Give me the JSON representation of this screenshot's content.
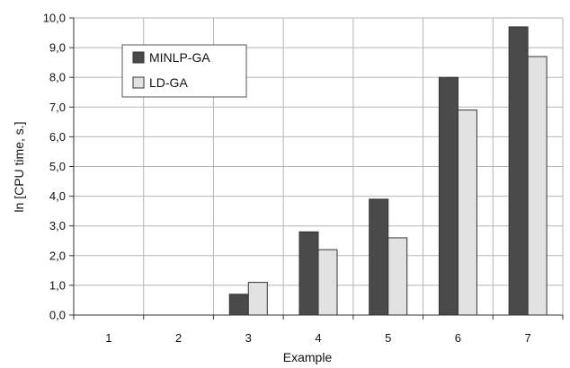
{
  "chart_data": {
    "type": "bar",
    "xlabel": "Example",
    "ylabel": "ln [CPU time, s.]",
    "categories": [
      "1",
      "2",
      "3",
      "4",
      "5",
      "6",
      "7"
    ],
    "ylim": [
      0,
      10
    ],
    "yticks": [
      "0,0",
      "1,0",
      "2,0",
      "3,0",
      "4,0",
      "5,0",
      "6,0",
      "7,0",
      "8,0",
      "9,0",
      "10,0"
    ],
    "grid": true,
    "legend_position": "top-left",
    "series": [
      {
        "name": "MINLP-GA",
        "color": "#4a4a4a",
        "values": [
          0,
          0,
          0.7,
          2.8,
          3.9,
          8.0,
          9.7
        ]
      },
      {
        "name": "LD-GA",
        "color": "#e2e2e2",
        "values": [
          0,
          0,
          1.1,
          2.2,
          2.6,
          6.9,
          8.7
        ]
      }
    ]
  }
}
